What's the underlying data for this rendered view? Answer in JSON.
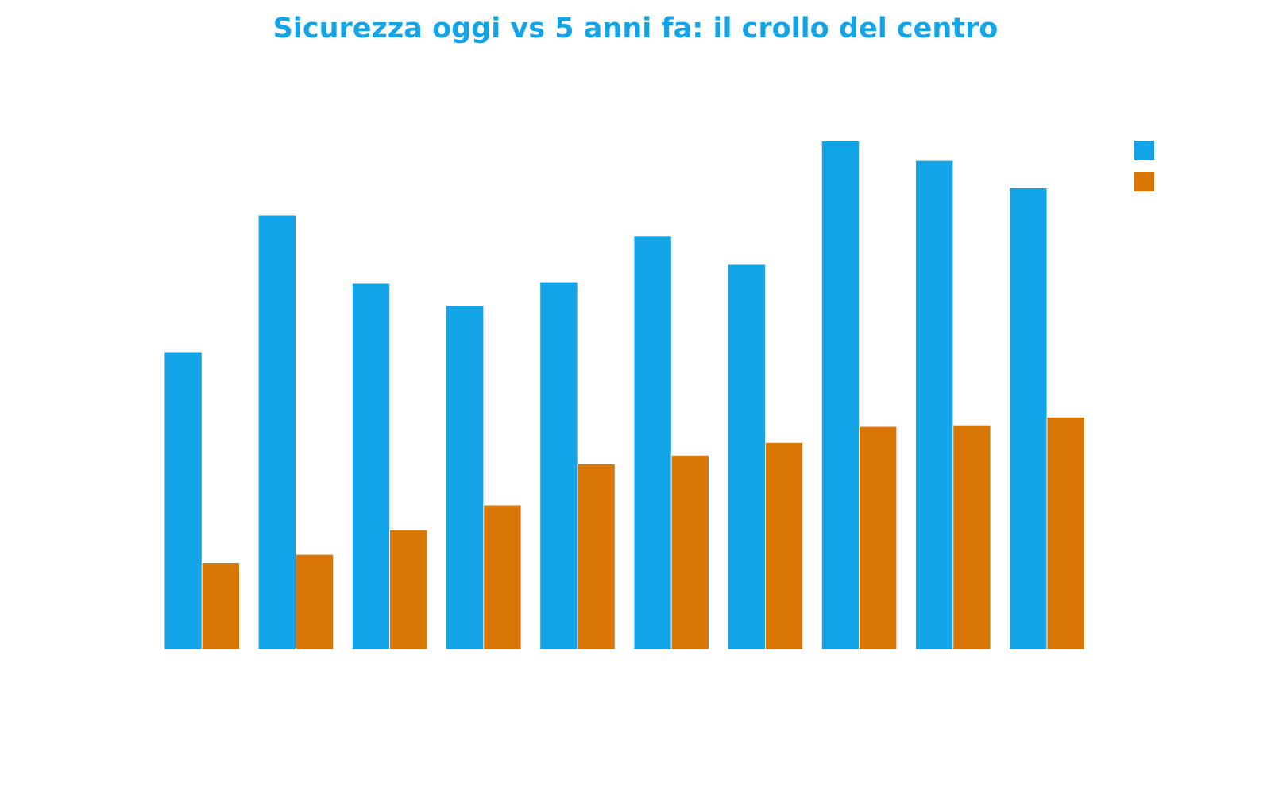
{
  "chart_data": {
    "type": "bar",
    "title": "Sicurezza oggi vs 5 anni fa: il crollo del centro",
    "xlabel": "",
    "ylabel": "",
    "categories": [
      "",
      "",
      "",
      "",
      "",
      "",
      "",
      "",
      "",
      ""
    ],
    "series": [
      {
        "values": [
          61,
          89,
          75,
          70.5,
          75.3,
          84.8,
          78.9,
          104.2,
          100.2,
          94.6
        ]
      },
      {
        "values": [
          17.8,
          19.5,
          24.5,
          29.6,
          38,
          39.8,
          42.4,
          45.7,
          46,
          47.6
        ]
      }
    ],
    "ylim": [
      0,
      110
    ],
    "grid": false,
    "legend": "top-right"
  },
  "colors": {
    "title": "#12a4e6",
    "series": [
      "#12a4e6",
      "#d97706"
    ]
  }
}
